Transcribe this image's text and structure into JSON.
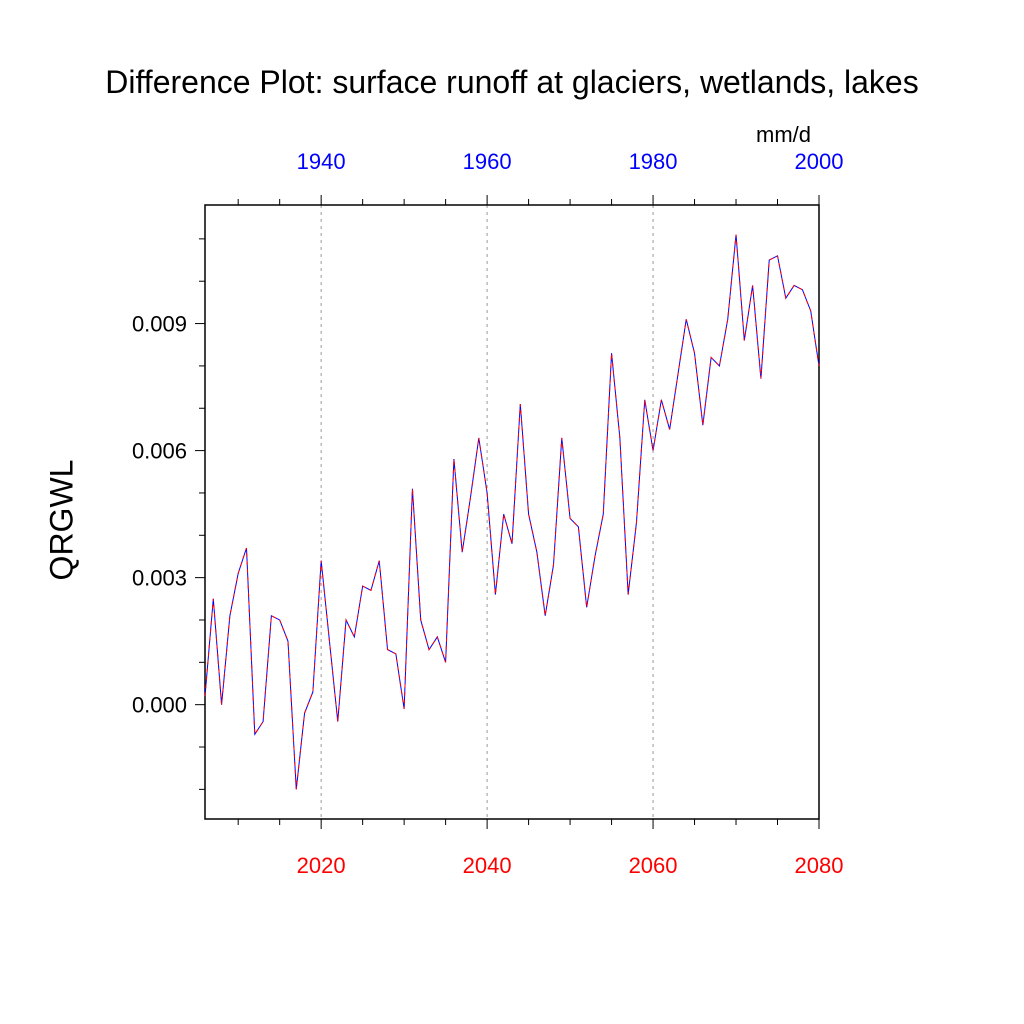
{
  "chart_data": {
    "type": "line",
    "title": "Difference Plot: surface runoff at glaciers, wetlands, lakes",
    "units": "mm/d",
    "ylabel": "QRGWL",
    "xlabel": "",
    "x_bottom": {
      "range": [
        2006,
        2080
      ],
      "ticks": [
        "2020",
        "2040",
        "2060",
        "2080"
      ],
      "color": "#ff0000"
    },
    "x_top": {
      "range": [
        1926,
        2000
      ],
      "ticks": [
        "1940",
        "1960",
        "1980",
        "2000"
      ],
      "color": "#0000ff"
    },
    "y_range": [
      -0.0027,
      0.0118
    ],
    "y_ticks": [
      "0.000",
      "0.003",
      "0.006",
      "0.009"
    ],
    "grid": "vertical dotted at major bottom ticks",
    "line_colors": [
      "#0000ff",
      "#ff0000"
    ],
    "x": [
      2006,
      2007,
      2008,
      2009,
      2010,
      2011,
      2012,
      2013,
      2014,
      2015,
      2016,
      2017,
      2018,
      2019,
      2020,
      2021,
      2022,
      2023,
      2024,
      2025,
      2026,
      2027,
      2028,
      2029,
      2030,
      2031,
      2032,
      2033,
      2034,
      2035,
      2036,
      2037,
      2038,
      2039,
      2040,
      2041,
      2042,
      2043,
      2044,
      2045,
      2046,
      2047,
      2048,
      2049,
      2050,
      2051,
      2052,
      2053,
      2054,
      2055,
      2056,
      2057,
      2058,
      2059,
      2060,
      2061,
      2062,
      2063,
      2064,
      2065,
      2066,
      2067,
      2068,
      2069,
      2070,
      2071,
      2072,
      2073,
      2074,
      2075,
      2076,
      2077,
      2078,
      2079,
      2080
    ],
    "y": [
      0.0002,
      0.0025,
      0.0,
      0.0021,
      0.0031,
      0.0037,
      -0.0007,
      -0.0004,
      0.0021,
      0.002,
      0.0015,
      -0.002,
      -0.0002,
      0.0003,
      0.0034,
      0.0015,
      -0.0004,
      0.002,
      0.0016,
      0.0028,
      0.0027,
      0.0034,
      0.0013,
      0.0012,
      -0.0001,
      0.0051,
      0.002,
      0.0013,
      0.0016,
      0.001,
      0.0058,
      0.0036,
      0.0049,
      0.0063,
      0.005,
      0.0026,
      0.0045,
      0.0038,
      0.0071,
      0.0045,
      0.0036,
      0.0021,
      0.0033,
      0.0063,
      0.0044,
      0.0042,
      0.0023,
      0.0035,
      0.0045,
      0.0083,
      0.0063,
      0.0026,
      0.0043,
      0.0072,
      0.006,
      0.0072,
      0.0065,
      0.0078,
      0.0091,
      0.0083,
      0.0066,
      0.0082,
      0.008,
      0.0091,
      0.0111,
      0.0086,
      0.0099,
      0.0077,
      0.0105,
      0.0106,
      0.0096,
      0.0099,
      0.0098,
      0.0093,
      0.008
    ]
  }
}
